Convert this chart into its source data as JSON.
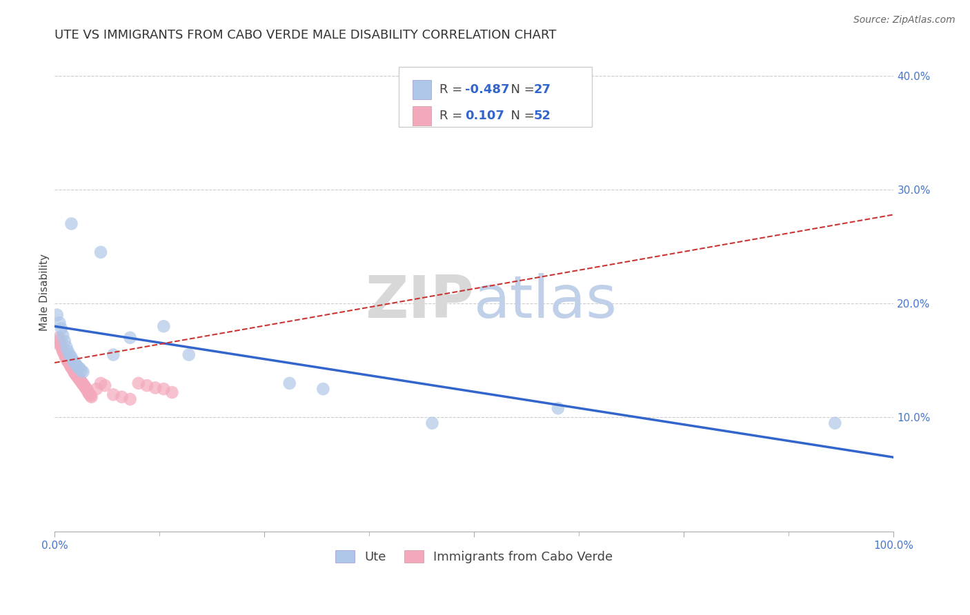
{
  "title": "UTE VS IMMIGRANTS FROM CABO VERDE MALE DISABILITY CORRELATION CHART",
  "source_text": "Source: ZipAtlas.com",
  "ylabel": "Male Disability",
  "xlim": [
    0,
    1.0
  ],
  "ylim": [
    0,
    0.42
  ],
  "grid_color": "#cccccc",
  "background_color": "#ffffff",
  "watermark_text": "ZIPatlas",
  "legend_r_ute": "-0.487",
  "legend_n_ute": "27",
  "legend_r_cabo": "0.107",
  "legend_n_cabo": "52",
  "ute_color": "#aec6e8",
  "cabo_color": "#f4a8bc",
  "ute_line_color": "#3366cc",
  "cabo_line_color": "#cc3333",
  "ute_scatter_x": [
    0.02,
    0.055,
    0.003,
    0.006,
    0.008,
    0.01,
    0.012,
    0.014,
    0.016,
    0.018,
    0.02,
    0.022,
    0.024,
    0.026,
    0.028,
    0.03,
    0.032,
    0.034,
    0.07,
    0.09,
    0.13,
    0.16,
    0.28,
    0.32,
    0.45,
    0.6,
    0.93
  ],
  "ute_scatter_y": [
    0.27,
    0.245,
    0.19,
    0.183,
    0.178,
    0.172,
    0.167,
    0.162,
    0.158,
    0.155,
    0.153,
    0.15,
    0.148,
    0.146,
    0.144,
    0.143,
    0.141,
    0.14,
    0.155,
    0.17,
    0.18,
    0.155,
    0.13,
    0.125,
    0.095,
    0.108,
    0.095
  ],
  "cabo_scatter_x": [
    0.003,
    0.005,
    0.006,
    0.007,
    0.008,
    0.009,
    0.01,
    0.011,
    0.012,
    0.013,
    0.014,
    0.015,
    0.016,
    0.017,
    0.018,
    0.019,
    0.02,
    0.021,
    0.022,
    0.023,
    0.024,
    0.025,
    0.026,
    0.027,
    0.028,
    0.029,
    0.03,
    0.031,
    0.032,
    0.033,
    0.034,
    0.035,
    0.036,
    0.037,
    0.038,
    0.039,
    0.04,
    0.041,
    0.042,
    0.043,
    0.044,
    0.05,
    0.055,
    0.06,
    0.07,
    0.08,
    0.09,
    0.1,
    0.11,
    0.12,
    0.13,
    0.14
  ],
  "cabo_scatter_y": [
    0.165,
    0.17,
    0.168,
    0.165,
    0.163,
    0.16,
    0.158,
    0.157,
    0.155,
    0.153,
    0.152,
    0.15,
    0.149,
    0.148,
    0.147,
    0.145,
    0.144,
    0.143,
    0.142,
    0.14,
    0.139,
    0.138,
    0.137,
    0.136,
    0.135,
    0.134,
    0.133,
    0.132,
    0.131,
    0.13,
    0.129,
    0.128,
    0.127,
    0.126,
    0.125,
    0.124,
    0.122,
    0.121,
    0.12,
    0.119,
    0.118,
    0.125,
    0.13,
    0.128,
    0.12,
    0.118,
    0.116,
    0.13,
    0.128,
    0.126,
    0.125,
    0.122
  ],
  "ute_line_x": [
    0.0,
    1.0
  ],
  "ute_line_y": [
    0.18,
    0.065
  ],
  "cabo_line_x": [
    0.0,
    1.0
  ],
  "cabo_line_y": [
    0.148,
    0.278
  ],
  "title_fontsize": 13,
  "axis_label_fontsize": 11,
  "tick_fontsize": 11,
  "legend_fontsize": 13
}
